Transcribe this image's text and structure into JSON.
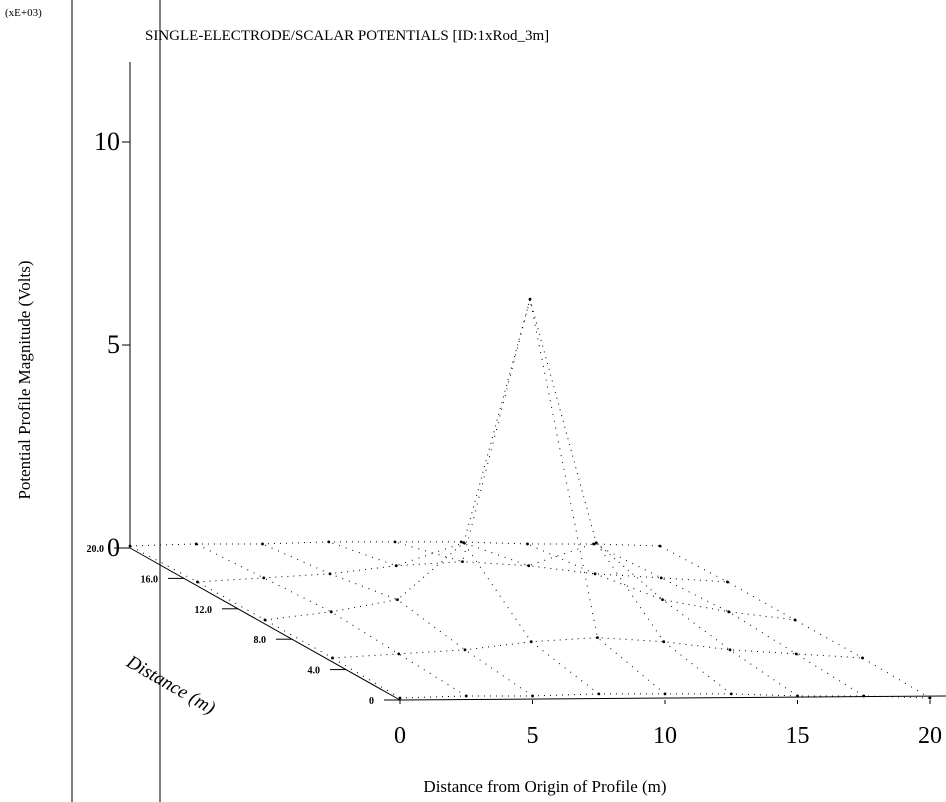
{
  "chart_data": {
    "type": "surface3d",
    "title": "SINGLE-ELECTRODE/SCALAR POTENTIALS [ID:1xRod_3m]",
    "z_multiplier": "(xE+03)",
    "z_label": "Potential Profile Magnitude (Volts)",
    "x_label": "Distance from Origin of Profile (m)",
    "depth_label": "Distance (m)",
    "color": "#000000",
    "x": [
      0,
      2.5,
      5,
      7.5,
      10,
      12.5,
      15,
      17.5,
      20
    ],
    "depths": [
      0,
      5,
      10,
      15,
      20
    ],
    "z": [
      [
        0.05,
        0.1,
        0.1,
        0.15,
        0.15,
        0.15,
        0.1,
        0.1,
        0.05
      ],
      [
        0.1,
        0.2,
        0.3,
        0.5,
        0.6,
        0.5,
        0.3,
        0.2,
        0.1
      ],
      [
        0.1,
        0.3,
        0.6,
        2.0,
        8.0,
        2.0,
        0.6,
        0.3,
        0.1
      ],
      [
        0.1,
        0.2,
        0.3,
        0.5,
        0.6,
        0.5,
        0.3,
        0.2,
        0.1
      ],
      [
        0.05,
        0.1,
        0.1,
        0.15,
        0.15,
        0.15,
        0.1,
        0.1,
        0.05
      ]
    ],
    "xlim": [
      0,
      20
    ],
    "xticks": [
      0,
      5,
      10,
      15,
      20
    ],
    "depthlim": [
      0,
      20
    ],
    "depthticks": [
      0,
      {
        "value": 4,
        "label": "4.0"
      },
      {
        "value": 8,
        "label": "8.0"
      },
      {
        "value": 12,
        "label": "12.0"
      },
      {
        "value": 16,
        "label": "16.0"
      },
      {
        "value": 20,
        "label": "20.0"
      }
    ],
    "zlim": [
      0,
      10
    ],
    "zticks": [
      0,
      5,
      10
    ]
  }
}
